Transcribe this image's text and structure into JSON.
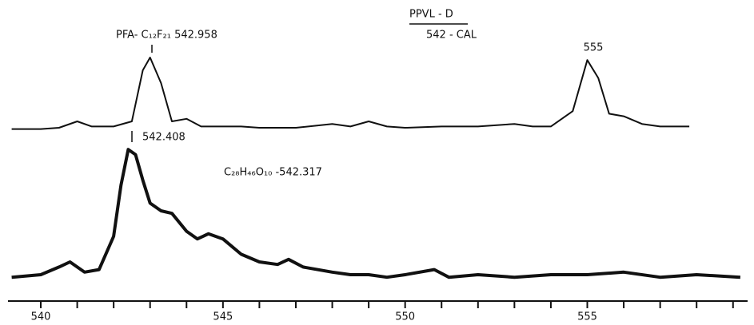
{
  "chart_data": {
    "type": "line",
    "annotations": [
      "PFA- C₁₂F₂₁  542.958",
      "PPVL - D",
      "542 - CAL",
      "555",
      "542.408",
      "C₂₈H₄₆O₁₀ -542.317"
    ],
    "series": [
      {
        "color": "#111111",
        "x": [
          539.2,
          540,
          540.5,
          541,
          541.4,
          542,
          542.5,
          542.8,
          543,
          543.3,
          543.6,
          544,
          544.4,
          545,
          545.5,
          546,
          547,
          548,
          548.5,
          549,
          549.5,
          550,
          551,
          552,
          553,
          553.5,
          554,
          554.6,
          555,
          555.3,
          555.6,
          556,
          556.5,
          557,
          557.8
        ],
        "values": [
          62,
          62,
          62.5,
          65,
          63,
          63,
          65,
          85,
          90,
          80,
          65,
          66,
          63,
          63,
          63,
          62.5,
          62.5,
          64,
          63,
          65,
          63,
          62.5,
          63,
          63,
          64,
          63,
          63,
          69,
          89,
          82,
          68,
          67,
          64,
          63,
          63
        ]
      },
      {
        "color": "#111111",
        "x": [
          539.2,
          540,
          540.5,
          540.8,
          541.2,
          541.6,
          542,
          542.2,
          542.4,
          542.6,
          542.8,
          543,
          543.3,
          543.6,
          544,
          544.3,
          544.6,
          545,
          545.5,
          546,
          546.5,
          546.8,
          547.2,
          548,
          548.5,
          549,
          549.5,
          550,
          550.8,
          551.2,
          552,
          553,
          554,
          555,
          556,
          557,
          558,
          559.2
        ],
        "values": [
          4,
          5,
          8,
          10,
          6,
          7,
          20,
          40,
          54,
          52,
          42,
          33,
          30,
          29,
          22,
          19,
          21,
          19,
          13,
          10,
          9,
          11,
          8,
          6,
          5,
          5,
          4,
          5,
          7,
          4,
          5,
          4,
          5,
          5,
          6,
          4,
          5,
          4
        ]
      }
    ],
    "xlim": [
      539.1,
      559.4
    ],
    "ylim": [
      0,
      100
    ],
    "xticks": [
      540,
      545,
      550,
      555
    ],
    "xminorticks": [
      541,
      542,
      543,
      544,
      546,
      547,
      548,
      549,
      551,
      552,
      553,
      554,
      556,
      557,
      558,
      559
    ]
  }
}
